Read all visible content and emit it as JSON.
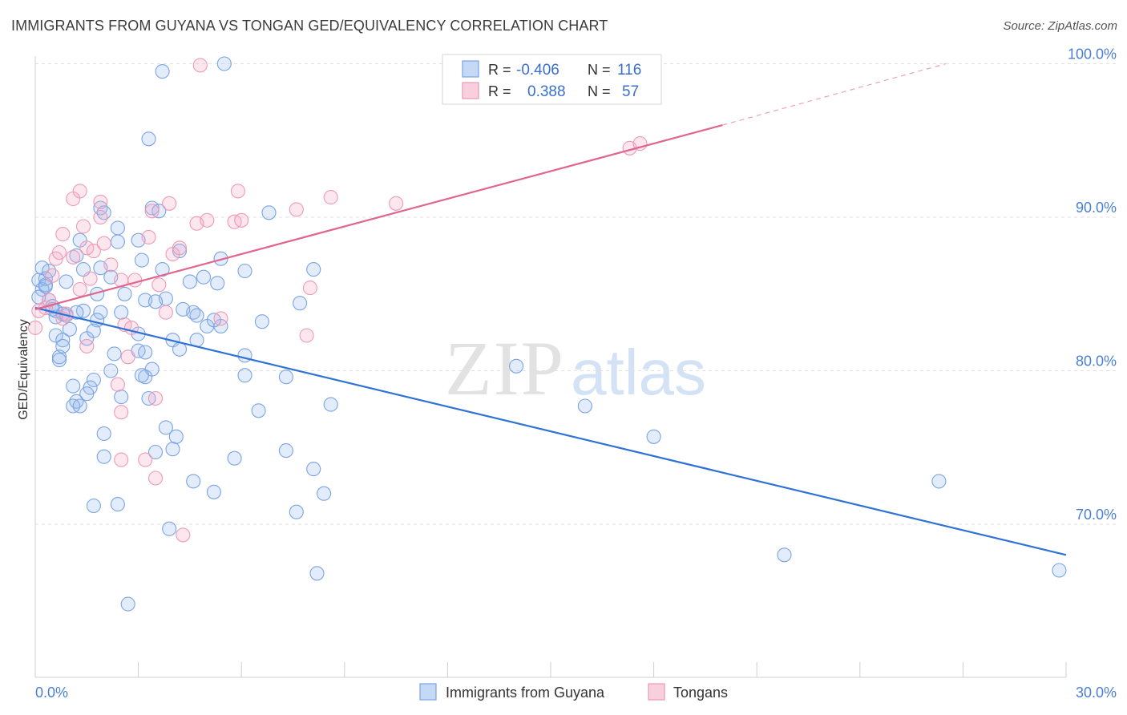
{
  "header": {
    "title": "IMMIGRANTS FROM GUYANA VS TONGAN GED/EQUIVALENCY CORRELATION CHART",
    "source": "Source: ZipAtlas.com"
  },
  "watermark": {
    "zip": "ZIP",
    "atlas": "atlas"
  },
  "legend": {
    "rows": [
      {
        "r_label": "R =",
        "r_value": "-0.406",
        "n_label": "N =",
        "n_value": "116",
        "color": "#5b8fdb"
      },
      {
        "r_label": "R =",
        "r_value": "0.388",
        "n_label": "N =",
        "n_value": "57",
        "color": "#e87fa0"
      }
    ]
  },
  "bottom_legend": [
    {
      "label": "Immigrants from Guyana",
      "color": "#5b8fdb"
    },
    {
      "label": "Tongans",
      "color": "#e87fa0"
    }
  ],
  "chart_data": {
    "type": "scatter",
    "title": "IMMIGRANTS FROM GUYANA VS TONGAN GED/EQUIVALENCY CORRELATION CHART",
    "xlabel": "",
    "ylabel": "GED/Equivalency",
    "xlim": [
      0,
      30
    ],
    "ylim": [
      60,
      101.5
    ],
    "x_tick_labels": [
      {
        "value": 0,
        "label": "0.0%"
      },
      {
        "value": 30,
        "label": "30.0%"
      }
    ],
    "y_tick_labels": [
      {
        "value": 70,
        "label": "70.0%"
      },
      {
        "value": 80,
        "label": "80.0%"
      },
      {
        "value": 90,
        "label": "90.0%"
      },
      {
        "value": 100,
        "label": "100.0%"
      }
    ],
    "x_minor_ticks": [
      3,
      6,
      9,
      12,
      15,
      18,
      21,
      24,
      27,
      30
    ],
    "grid": true,
    "series": [
      {
        "name": "Immigrants from Guyana",
        "color": "#5b8fdb",
        "trend": {
          "x": [
            0,
            30
          ],
          "y": [
            84.1,
            68.0
          ],
          "dashed_extension": false
        },
        "points": [
          [
            3.7,
            99.5
          ],
          [
            5.5,
            100.0
          ],
          [
            3.3,
            95.1
          ],
          [
            1.9,
            90.6
          ],
          [
            2.0,
            90.3
          ],
          [
            3.4,
            90.6
          ],
          [
            3.6,
            90.4
          ],
          [
            6.8,
            90.3
          ],
          [
            2.4,
            89.3
          ],
          [
            1.3,
            88.5
          ],
          [
            2.4,
            88.4
          ],
          [
            3.0,
            88.5
          ],
          [
            4.2,
            87.8
          ],
          [
            1.2,
            87.5
          ],
          [
            3.1,
            87.2
          ],
          [
            5.4,
            87.3
          ],
          [
            0.2,
            86.7
          ],
          [
            0.4,
            86.5
          ],
          [
            1.9,
            86.7
          ],
          [
            1.4,
            86.6
          ],
          [
            3.7,
            86.6
          ],
          [
            6.1,
            86.5
          ],
          [
            8.1,
            86.6
          ],
          [
            2.2,
            86.1
          ],
          [
            4.9,
            86.1
          ],
          [
            0.1,
            85.9
          ],
          [
            0.3,
            85.6
          ],
          [
            0.2,
            85.3
          ],
          [
            0.9,
            85.8
          ],
          [
            4.5,
            85.8
          ],
          [
            5.3,
            85.7
          ],
          [
            2.6,
            85.0
          ],
          [
            1.8,
            85.0
          ],
          [
            0.4,
            84.6
          ],
          [
            3.2,
            84.6
          ],
          [
            3.8,
            84.7
          ],
          [
            3.5,
            84.5
          ],
          [
            7.7,
            84.4
          ],
          [
            0.5,
            84.0
          ],
          [
            0.6,
            83.9
          ],
          [
            0.8,
            83.7
          ],
          [
            1.4,
            83.9
          ],
          [
            1.9,
            83.8
          ],
          [
            2.5,
            83.8
          ],
          [
            4.6,
            83.8
          ],
          [
            4.7,
            83.6
          ],
          [
            0.6,
            83.5
          ],
          [
            1.8,
            83.3
          ],
          [
            6.6,
            83.2
          ],
          [
            5.0,
            82.9
          ],
          [
            5.4,
            82.9
          ],
          [
            1.0,
            82.7
          ],
          [
            3.0,
            82.4
          ],
          [
            0.6,
            82.3
          ],
          [
            0.8,
            82.0
          ],
          [
            1.5,
            82.1
          ],
          [
            4.0,
            82.0
          ],
          [
            4.7,
            82.0
          ],
          [
            0.8,
            81.6
          ],
          [
            3.0,
            81.3
          ],
          [
            3.2,
            81.2
          ],
          [
            2.3,
            81.1
          ],
          [
            4.2,
            81.4
          ],
          [
            6.1,
            81.0
          ],
          [
            0.7,
            80.9
          ],
          [
            0.7,
            80.7
          ],
          [
            3.4,
            80.1
          ],
          [
            3.2,
            79.6
          ],
          [
            3.1,
            79.7
          ],
          [
            6.1,
            79.7
          ],
          [
            7.3,
            79.6
          ],
          [
            1.1,
            79.0
          ],
          [
            1.7,
            79.4
          ],
          [
            1.6,
            78.9
          ],
          [
            1.5,
            78.5
          ],
          [
            2.5,
            78.3
          ],
          [
            3.3,
            78.2
          ],
          [
            1.2,
            78.0
          ],
          [
            1.1,
            77.7
          ],
          [
            1.3,
            77.7
          ],
          [
            8.6,
            77.8
          ],
          [
            6.5,
            77.4
          ],
          [
            3.8,
            76.3
          ],
          [
            4.1,
            75.7
          ],
          [
            2.0,
            75.9
          ],
          [
            4.0,
            74.9
          ],
          [
            3.5,
            74.7
          ],
          [
            7.3,
            74.8
          ],
          [
            5.8,
            74.3
          ],
          [
            2.0,
            74.4
          ],
          [
            8.1,
            73.6
          ],
          [
            4.6,
            72.8
          ],
          [
            5.2,
            72.1
          ],
          [
            8.4,
            72.0
          ],
          [
            1.7,
            71.2
          ],
          [
            2.4,
            71.3
          ],
          [
            7.6,
            70.8
          ],
          [
            3.9,
            69.7
          ],
          [
            8.2,
            66.8
          ],
          [
            2.7,
            64.8
          ],
          [
            14.0,
            80.3
          ],
          [
            16.0,
            77.7
          ],
          [
            18.0,
            75.7
          ],
          [
            21.8,
            68.0
          ],
          [
            26.3,
            72.8
          ],
          [
            29.8,
            67.0
          ],
          [
            0.1,
            84.8
          ],
          [
            0.3,
            85.5
          ],
          [
            0.5,
            84.2
          ],
          [
            1.2,
            83.8
          ],
          [
            0.3,
            86.0
          ],
          [
            2.2,
            80.0
          ],
          [
            4.3,
            84.0
          ],
          [
            5.2,
            83.3
          ],
          [
            0.9,
            83.6
          ],
          [
            1.7,
            82.6
          ]
        ]
      },
      {
        "name": "Tongans",
        "color": "#e87fa0",
        "trend": {
          "x": [
            0,
            20
          ],
          "y": [
            84.0,
            96.0
          ],
          "dashed_to": [
            26.5,
            100.0
          ]
        },
        "points": [
          [
            0.0,
            82.8
          ],
          [
            0.1,
            83.9
          ],
          [
            0.3,
            84.1
          ],
          [
            0.5,
            86.2
          ],
          [
            0.6,
            87.3
          ],
          [
            0.7,
            87.7
          ],
          [
            0.8,
            88.9
          ],
          [
            1.1,
            87.4
          ],
          [
            1.1,
            91.2
          ],
          [
            1.3,
            91.7
          ],
          [
            1.4,
            89.4
          ],
          [
            1.5,
            88.0
          ],
          [
            1.6,
            86.0
          ],
          [
            1.7,
            87.8
          ],
          [
            1.9,
            91.0
          ],
          [
            1.9,
            90.0
          ],
          [
            2.0,
            88.3
          ],
          [
            2.2,
            86.9
          ],
          [
            2.5,
            85.9
          ],
          [
            2.6,
            83.0
          ],
          [
            2.7,
            80.9
          ],
          [
            2.9,
            85.9
          ],
          [
            3.3,
            88.7
          ],
          [
            3.4,
            90.4
          ],
          [
            3.6,
            85.6
          ],
          [
            3.8,
            83.8
          ],
          [
            3.9,
            90.9
          ],
          [
            4.0,
            87.6
          ],
          [
            4.2,
            88.0
          ],
          [
            4.7,
            89.6
          ],
          [
            5.0,
            89.8
          ],
          [
            5.4,
            83.4
          ],
          [
            5.8,
            89.7
          ],
          [
            6.0,
            89.8
          ],
          [
            5.9,
            91.7
          ],
          [
            7.6,
            90.5
          ],
          [
            7.9,
            82.3
          ],
          [
            8.0,
            85.4
          ],
          [
            8.6,
            91.3
          ],
          [
            10.5,
            90.9
          ],
          [
            12.2,
            98.5
          ],
          [
            17.3,
            94.5
          ],
          [
            17.6,
            94.8
          ],
          [
            4.8,
            99.9
          ],
          [
            2.5,
            77.3
          ],
          [
            2.4,
            79.1
          ],
          [
            3.2,
            74.2
          ],
          [
            3.5,
            78.2
          ],
          [
            2.5,
            74.2
          ],
          [
            3.5,
            73.0
          ],
          [
            4.3,
            69.3
          ],
          [
            0.8,
            83.4
          ],
          [
            1.5,
            81.6
          ],
          [
            2.8,
            82.8
          ],
          [
            1.3,
            85.3
          ],
          [
            0.4,
            84.6
          ],
          [
            0.9,
            83.7
          ]
        ]
      }
    ]
  }
}
